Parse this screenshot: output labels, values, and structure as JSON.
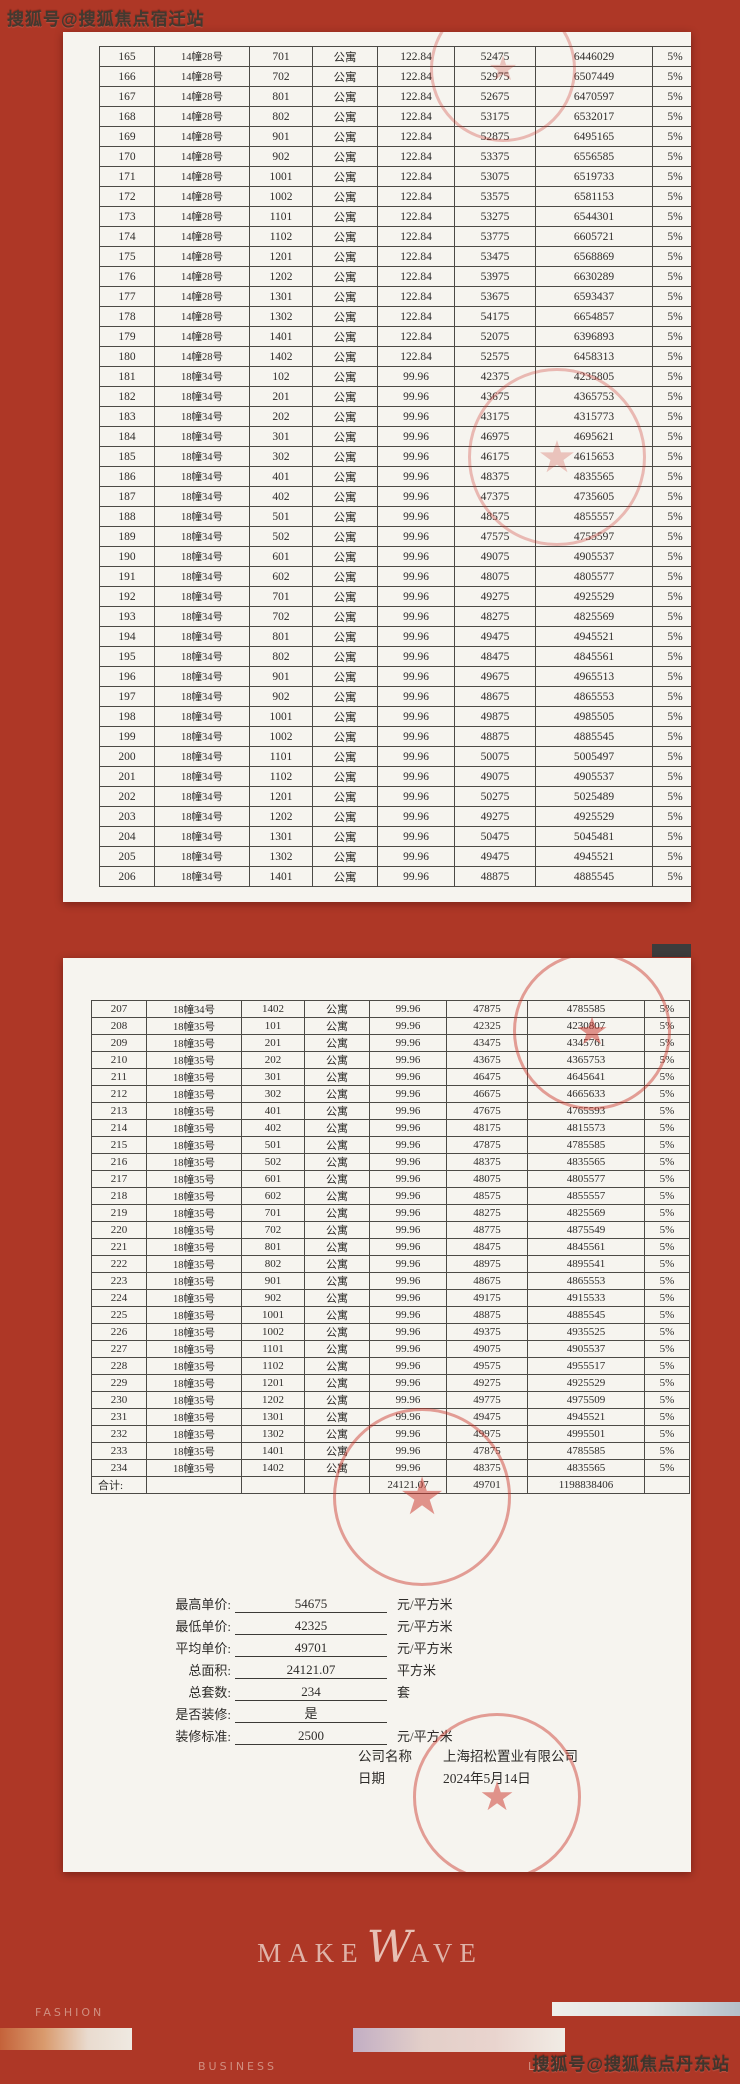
{
  "watermarks": {
    "top": "搜狐号@搜狐焦点宿迁站",
    "bottom": "搜狐号@搜狐焦点丹东站"
  },
  "colors": {
    "background": "#ae3726",
    "page": "#f6f4ef",
    "seal_red": "#c93025"
  },
  "page1": {
    "rows": [
      [
        "165",
        "14幢28号",
        "701",
        "公寓",
        "122.84",
        "52475",
        "6446029",
        "5%"
      ],
      [
        "166",
        "14幢28号",
        "702",
        "公寓",
        "122.84",
        "52975",
        "6507449",
        "5%"
      ],
      [
        "167",
        "14幢28号",
        "801",
        "公寓",
        "122.84",
        "52675",
        "6470597",
        "5%"
      ],
      [
        "168",
        "14幢28号",
        "802",
        "公寓",
        "122.84",
        "53175",
        "6532017",
        "5%"
      ],
      [
        "169",
        "14幢28号",
        "901",
        "公寓",
        "122.84",
        "52875",
        "6495165",
        "5%"
      ],
      [
        "170",
        "14幢28号",
        "902",
        "公寓",
        "122.84",
        "53375",
        "6556585",
        "5%"
      ],
      [
        "171",
        "14幢28号",
        "1001",
        "公寓",
        "122.84",
        "53075",
        "6519733",
        "5%"
      ],
      [
        "172",
        "14幢28号",
        "1002",
        "公寓",
        "122.84",
        "53575",
        "6581153",
        "5%"
      ],
      [
        "173",
        "14幢28号",
        "1101",
        "公寓",
        "122.84",
        "53275",
        "6544301",
        "5%"
      ],
      [
        "174",
        "14幢28号",
        "1102",
        "公寓",
        "122.84",
        "53775",
        "6605721",
        "5%"
      ],
      [
        "175",
        "14幢28号",
        "1201",
        "公寓",
        "122.84",
        "53475",
        "6568869",
        "5%"
      ],
      [
        "176",
        "14幢28号",
        "1202",
        "公寓",
        "122.84",
        "53975",
        "6630289",
        "5%"
      ],
      [
        "177",
        "14幢28号",
        "1301",
        "公寓",
        "122.84",
        "53675",
        "6593437",
        "5%"
      ],
      [
        "178",
        "14幢28号",
        "1302",
        "公寓",
        "122.84",
        "54175",
        "6654857",
        "5%"
      ],
      [
        "179",
        "14幢28号",
        "1401",
        "公寓",
        "122.84",
        "52075",
        "6396893",
        "5%"
      ],
      [
        "180",
        "14幢28号",
        "1402",
        "公寓",
        "122.84",
        "52575",
        "6458313",
        "5%"
      ],
      [
        "181",
        "18幢34号",
        "102",
        "公寓",
        "99.96",
        "42375",
        "4235805",
        "5%"
      ],
      [
        "182",
        "18幢34号",
        "201",
        "公寓",
        "99.96",
        "43675",
        "4365753",
        "5%"
      ],
      [
        "183",
        "18幢34号",
        "202",
        "公寓",
        "99.96",
        "43175",
        "4315773",
        "5%"
      ],
      [
        "184",
        "18幢34号",
        "301",
        "公寓",
        "99.96",
        "46975",
        "4695621",
        "5%"
      ],
      [
        "185",
        "18幢34号",
        "302",
        "公寓",
        "99.96",
        "46175",
        "4615653",
        "5%"
      ],
      [
        "186",
        "18幢34号",
        "401",
        "公寓",
        "99.96",
        "48375",
        "4835565",
        "5%"
      ],
      [
        "187",
        "18幢34号",
        "402",
        "公寓",
        "99.96",
        "47375",
        "4735605",
        "5%"
      ],
      [
        "188",
        "18幢34号",
        "501",
        "公寓",
        "99.96",
        "48575",
        "4855557",
        "5%"
      ],
      [
        "189",
        "18幢34号",
        "502",
        "公寓",
        "99.96",
        "47575",
        "4755597",
        "5%"
      ],
      [
        "190",
        "18幢34号",
        "601",
        "公寓",
        "99.96",
        "49075",
        "4905537",
        "5%"
      ],
      [
        "191",
        "18幢34号",
        "602",
        "公寓",
        "99.96",
        "48075",
        "4805577",
        "5%"
      ],
      [
        "192",
        "18幢34号",
        "701",
        "公寓",
        "99.96",
        "49275",
        "4925529",
        "5%"
      ],
      [
        "193",
        "18幢34号",
        "702",
        "公寓",
        "99.96",
        "48275",
        "4825569",
        "5%"
      ],
      [
        "194",
        "18幢34号",
        "801",
        "公寓",
        "99.96",
        "49475",
        "4945521",
        "5%"
      ],
      [
        "195",
        "18幢34号",
        "802",
        "公寓",
        "99.96",
        "48475",
        "4845561",
        "5%"
      ],
      [
        "196",
        "18幢34号",
        "901",
        "公寓",
        "99.96",
        "49675",
        "4965513",
        "5%"
      ],
      [
        "197",
        "18幢34号",
        "902",
        "公寓",
        "99.96",
        "48675",
        "4865553",
        "5%"
      ],
      [
        "198",
        "18幢34号",
        "1001",
        "公寓",
        "99.96",
        "49875",
        "4985505",
        "5%"
      ],
      [
        "199",
        "18幢34号",
        "1002",
        "公寓",
        "99.96",
        "48875",
        "4885545",
        "5%"
      ],
      [
        "200",
        "18幢34号",
        "1101",
        "公寓",
        "99.96",
        "50075",
        "5005497",
        "5%"
      ],
      [
        "201",
        "18幢34号",
        "1102",
        "公寓",
        "99.96",
        "49075",
        "4905537",
        "5%"
      ],
      [
        "202",
        "18幢34号",
        "1201",
        "公寓",
        "99.96",
        "50275",
        "5025489",
        "5%"
      ],
      [
        "203",
        "18幢34号",
        "1202",
        "公寓",
        "99.96",
        "49275",
        "4925529",
        "5%"
      ],
      [
        "204",
        "18幢34号",
        "1301",
        "公寓",
        "99.96",
        "50475",
        "5045481",
        "5%"
      ],
      [
        "205",
        "18幢34号",
        "1302",
        "公寓",
        "99.96",
        "49475",
        "4945521",
        "5%"
      ],
      [
        "206",
        "18幢34号",
        "1401",
        "公寓",
        "99.96",
        "48875",
        "4885545",
        "5%"
      ]
    ]
  },
  "page2": {
    "rows": [
      [
        "207",
        "18幢34号",
        "1402",
        "公寓",
        "99.96",
        "47875",
        "4785585",
        "5%"
      ],
      [
        "208",
        "18幢35号",
        "101",
        "公寓",
        "99.96",
        "42325",
        "4230807",
        "5%"
      ],
      [
        "209",
        "18幢35号",
        "201",
        "公寓",
        "99.96",
        "43475",
        "4345761",
        "5%"
      ],
      [
        "210",
        "18幢35号",
        "202",
        "公寓",
        "99.96",
        "43675",
        "4365753",
        "5%"
      ],
      [
        "211",
        "18幢35号",
        "301",
        "公寓",
        "99.96",
        "46475",
        "4645641",
        "5%"
      ],
      [
        "212",
        "18幢35号",
        "302",
        "公寓",
        "99.96",
        "46675",
        "4665633",
        "5%"
      ],
      [
        "213",
        "18幢35号",
        "401",
        "公寓",
        "99.96",
        "47675",
        "4765593",
        "5%"
      ],
      [
        "214",
        "18幢35号",
        "402",
        "公寓",
        "99.96",
        "48175",
        "4815573",
        "5%"
      ],
      [
        "215",
        "18幢35号",
        "501",
        "公寓",
        "99.96",
        "47875",
        "4785585",
        "5%"
      ],
      [
        "216",
        "18幢35号",
        "502",
        "公寓",
        "99.96",
        "48375",
        "4835565",
        "5%"
      ],
      [
        "217",
        "18幢35号",
        "601",
        "公寓",
        "99.96",
        "48075",
        "4805577",
        "5%"
      ],
      [
        "218",
        "18幢35号",
        "602",
        "公寓",
        "99.96",
        "48575",
        "4855557",
        "5%"
      ],
      [
        "219",
        "18幢35号",
        "701",
        "公寓",
        "99.96",
        "48275",
        "4825569",
        "5%"
      ],
      [
        "220",
        "18幢35号",
        "702",
        "公寓",
        "99.96",
        "48775",
        "4875549",
        "5%"
      ],
      [
        "221",
        "18幢35号",
        "801",
        "公寓",
        "99.96",
        "48475",
        "4845561",
        "5%"
      ],
      [
        "222",
        "18幢35号",
        "802",
        "公寓",
        "99.96",
        "48975",
        "4895541",
        "5%"
      ],
      [
        "223",
        "18幢35号",
        "901",
        "公寓",
        "99.96",
        "48675",
        "4865553",
        "5%"
      ],
      [
        "224",
        "18幢35号",
        "902",
        "公寓",
        "99.96",
        "49175",
        "4915533",
        "5%"
      ],
      [
        "225",
        "18幢35号",
        "1001",
        "公寓",
        "99.96",
        "48875",
        "4885545",
        "5%"
      ],
      [
        "226",
        "18幢35号",
        "1002",
        "公寓",
        "99.96",
        "49375",
        "4935525",
        "5%"
      ],
      [
        "227",
        "18幢35号",
        "1101",
        "公寓",
        "99.96",
        "49075",
        "4905537",
        "5%"
      ],
      [
        "228",
        "18幢35号",
        "1102",
        "公寓",
        "99.96",
        "49575",
        "4955517",
        "5%"
      ],
      [
        "229",
        "18幢35号",
        "1201",
        "公寓",
        "99.96",
        "49275",
        "4925529",
        "5%"
      ],
      [
        "230",
        "18幢35号",
        "1202",
        "公寓",
        "99.96",
        "49775",
        "4975509",
        "5%"
      ],
      [
        "231",
        "18幢35号",
        "1301",
        "公寓",
        "99.96",
        "49475",
        "4945521",
        "5%"
      ],
      [
        "232",
        "18幢35号",
        "1302",
        "公寓",
        "99.96",
        "49975",
        "4995501",
        "5%"
      ],
      [
        "233",
        "18幢35号",
        "1401",
        "公寓",
        "99.96",
        "47875",
        "4785585",
        "5%"
      ],
      [
        "234",
        "18幢35号",
        "1402",
        "公寓",
        "99.96",
        "48375",
        "4835565",
        "5%"
      ],
      [
        "合计:",
        "",
        "",
        "",
        "24121.07",
        "49701",
        "1198838406",
        ""
      ]
    ],
    "summary": [
      {
        "label": "最高单价:",
        "value": "54675",
        "unit": "元/平方米"
      },
      {
        "label": "最低单价:",
        "value": "42325",
        "unit": "元/平方米"
      },
      {
        "label": "平均单价:",
        "value": "49701",
        "unit": "元/平方米"
      },
      {
        "label": "总面积:",
        "value": "24121.07",
        "unit": "平方米"
      },
      {
        "label": "总套数:",
        "value": "234",
        "unit": "套"
      },
      {
        "label": "是否装修:",
        "value": "是",
        "unit": ""
      },
      {
        "label": "装修标准:",
        "value": "2500",
        "unit": "元/平方米"
      }
    ],
    "company": {
      "name_label": "公司名称",
      "name": "上海招松置业有限公司",
      "date_label": "日期",
      "date": "2024年5月14日"
    }
  },
  "footer": {
    "logo_left": "MAKE",
    "logo_w": "W",
    "logo_right": "AVE",
    "tag_fashion": "FASHION",
    "tag_business": "BUSINESS",
    "tag_life": "LIFE"
  }
}
